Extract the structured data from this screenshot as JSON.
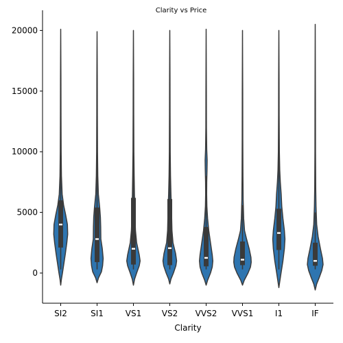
{
  "chart_data": {
    "type": "violin",
    "title": "Clarity vs Price",
    "xlabel": "Clarity",
    "ylabel": "",
    "categories": [
      "SI2",
      "SI1",
      "VS1",
      "VS2",
      "VVS2",
      "VVS1",
      "I1",
      "IF"
    ],
    "yticks": [
      0,
      5000,
      10000,
      15000,
      20000
    ],
    "ylim": [
      -2500,
      21800
    ],
    "grid": false,
    "fill_color": "#2e75b0",
    "outline_color": "#3b3b3b",
    "box_color": "#3a3a3a",
    "median_color": "#ffffff",
    "violins": [
      {
        "category": "SI2",
        "min": -1000,
        "max": 20100,
        "q1": 2100,
        "median": 4000,
        "q3": 6000,
        "whisker_low": 300,
        "whisker_high": 11000,
        "profile": [
          [
            -1000,
            0
          ],
          [
            -500,
            0.05
          ],
          [
            0,
            0.12
          ],
          [
            800,
            0.22
          ],
          [
            1600,
            0.32
          ],
          [
            2500,
            0.42
          ],
          [
            3200,
            0.48
          ],
          [
            4000,
            0.46
          ],
          [
            4800,
            0.34
          ],
          [
            5600,
            0.2
          ],
          [
            6500,
            0.1
          ],
          [
            8000,
            0.05
          ],
          [
            10000,
            0.03
          ],
          [
            13000,
            0.02
          ],
          [
            16000,
            0.015
          ],
          [
            20100,
            0
          ]
        ]
      },
      {
        "category": "SI1",
        "min": -800,
        "max": 19900,
        "q1": 900,
        "median": 2800,
        "q3": 5400,
        "whisker_low": 300,
        "whisker_high": 12000,
        "profile": [
          [
            -800,
            0
          ],
          [
            -400,
            0.1
          ],
          [
            100,
            0.3
          ],
          [
            600,
            0.38
          ],
          [
            1200,
            0.42
          ],
          [
            2000,
            0.36
          ],
          [
            2800,
            0.26
          ],
          [
            3800,
            0.25
          ],
          [
            4600,
            0.23
          ],
          [
            5400,
            0.18
          ],
          [
            6500,
            0.09
          ],
          [
            8000,
            0.05
          ],
          [
            10000,
            0.03
          ],
          [
            13000,
            0.02
          ],
          [
            16000,
            0.015
          ],
          [
            19900,
            0
          ]
        ]
      },
      {
        "category": "VS1",
        "min": -1000,
        "max": 20000,
        "q1": 700,
        "median": 2000,
        "q3": 6200,
        "whisker_low": 300,
        "whisker_high": 13000,
        "profile": [
          [
            -1000,
            0
          ],
          [
            -500,
            0.08
          ],
          [
            0,
            0.22
          ],
          [
            600,
            0.4
          ],
          [
            1000,
            0.46
          ],
          [
            1500,
            0.4
          ],
          [
            2500,
            0.22
          ],
          [
            3500,
            0.14
          ],
          [
            4500,
            0.11
          ],
          [
            5500,
            0.09
          ],
          [
            6500,
            0.07
          ],
          [
            8000,
            0.05
          ],
          [
            10000,
            0.03
          ],
          [
            13000,
            0.02
          ],
          [
            16000,
            0.015
          ],
          [
            20000,
            0
          ]
        ]
      },
      {
        "category": "VS2",
        "min": -900,
        "max": 20000,
        "q1": 650,
        "median": 2050,
        "q3": 6100,
        "whisker_low": 300,
        "whisker_high": 13000,
        "profile": [
          [
            -900,
            0
          ],
          [
            -500,
            0.08
          ],
          [
            0,
            0.25
          ],
          [
            600,
            0.42
          ],
          [
            1000,
            0.47
          ],
          [
            1600,
            0.4
          ],
          [
            2500,
            0.22
          ],
          [
            3500,
            0.15
          ],
          [
            4500,
            0.13
          ],
          [
            5500,
            0.11
          ],
          [
            6500,
            0.08
          ],
          [
            8000,
            0.05
          ],
          [
            10000,
            0.03
          ],
          [
            13000,
            0.02
          ],
          [
            16000,
            0.015
          ],
          [
            20000,
            0
          ]
        ]
      },
      {
        "category": "VVS2",
        "min": -1000,
        "max": 20100,
        "q1": 550,
        "median": 1250,
        "q3": 3800,
        "whisker_low": 300,
        "whisker_high": 8000,
        "profile": [
          [
            -1000,
            0
          ],
          [
            -600,
            0.1
          ],
          [
            0,
            0.3
          ],
          [
            500,
            0.42
          ],
          [
            1000,
            0.46
          ],
          [
            1500,
            0.42
          ],
          [
            2500,
            0.3
          ],
          [
            3500,
            0.18
          ],
          [
            4500,
            0.1
          ],
          [
            5500,
            0.05
          ],
          [
            6500,
            0.035
          ],
          [
            7500,
            0.04
          ],
          [
            8500,
            0.06
          ],
          [
            9300,
            0.07
          ],
          [
            10200,
            0.04
          ],
          [
            12000,
            0.02
          ],
          [
            15000,
            0.015
          ],
          [
            20100,
            0
          ]
        ]
      },
      {
        "category": "VVS1",
        "min": -1000,
        "max": 20000,
        "q1": 650,
        "median": 1100,
        "q3": 2600,
        "whisker_low": 300,
        "whisker_high": 5600,
        "profile": [
          [
            -1000,
            0
          ],
          [
            -600,
            0.12
          ],
          [
            0,
            0.38
          ],
          [
            500,
            0.55
          ],
          [
            900,
            0.6
          ],
          [
            1300,
            0.58
          ],
          [
            2000,
            0.46
          ],
          [
            2800,
            0.28
          ],
          [
            3500,
            0.14
          ],
          [
            4500,
            0.08
          ],
          [
            6000,
            0.045
          ],
          [
            8000,
            0.03
          ],
          [
            11000,
            0.02
          ],
          [
            15000,
            0.015
          ],
          [
            20000,
            0
          ]
        ]
      },
      {
        "category": "I1",
        "min": -1200,
        "max": 20000,
        "q1": 1900,
        "median": 3300,
        "q3": 5300,
        "whisker_low": 300,
        "whisker_high": 11000,
        "profile": [
          [
            -1200,
            0
          ],
          [
            -800,
            0.05
          ],
          [
            0,
            0.15
          ],
          [
            1000,
            0.28
          ],
          [
            2000,
            0.38
          ],
          [
            2800,
            0.42
          ],
          [
            3500,
            0.38
          ],
          [
            4500,
            0.28
          ],
          [
            5500,
            0.2
          ],
          [
            6500,
            0.16
          ],
          [
            7500,
            0.1
          ],
          [
            8500,
            0.06
          ],
          [
            10000,
            0.035
          ],
          [
            13000,
            0.02
          ],
          [
            16000,
            0.015
          ],
          [
            20000,
            0
          ]
        ]
      },
      {
        "category": "IF",
        "min": -1400,
        "max": 20500,
        "q1": 600,
        "median": 1000,
        "q3": 2500,
        "whisker_low": 300,
        "whisker_high": 5000,
        "profile": [
          [
            -1400,
            0
          ],
          [
            -900,
            0.1
          ],
          [
            -300,
            0.3
          ],
          [
            200,
            0.45
          ],
          [
            700,
            0.54
          ],
          [
            1200,
            0.5
          ],
          [
            2000,
            0.36
          ],
          [
            3000,
            0.2
          ],
          [
            4000,
            0.1
          ],
          [
            5500,
            0.055
          ],
          [
            7000,
            0.035
          ],
          [
            10000,
            0.02
          ],
          [
            14000,
            0.015
          ],
          [
            20500,
            0
          ]
        ]
      }
    ]
  }
}
